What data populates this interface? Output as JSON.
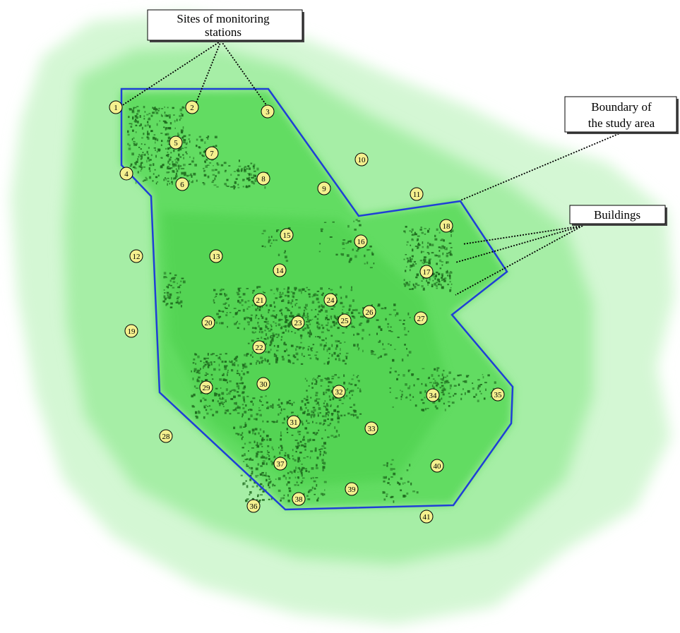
{
  "labels": {
    "monitoring": [
      "Sites of monitoring",
      "stations"
    ],
    "boundary": [
      "Boundary of",
      "the study area"
    ],
    "buildings": "Buildings"
  },
  "stations": [
    "1",
    "2",
    "3",
    "4",
    "5",
    "6",
    "7",
    "8",
    "9",
    "10",
    "11",
    "12",
    "13",
    "14",
    "15",
    "16",
    "17",
    "18",
    "19",
    "20",
    "21",
    "22",
    "23",
    "24",
    "25",
    "26",
    "27",
    "28",
    "29",
    "30",
    "31",
    "32",
    "33",
    "34",
    "35",
    "36",
    "37",
    "38",
    "39",
    "40",
    "41"
  ],
  "colors": {
    "boundary": "#1f3fd6",
    "station_fill": "#f4f08e",
    "vegetation_light": "#c8f5c8",
    "vegetation_mid": "#8ae88a",
    "vegetation_core": "#55d855",
    "buildings": "#1e6b1e"
  }
}
